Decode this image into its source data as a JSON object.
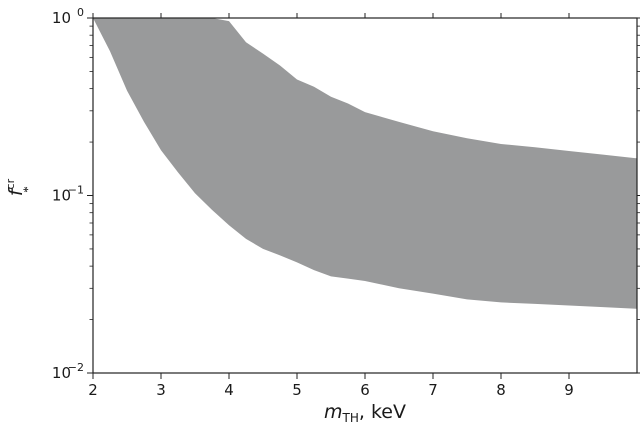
{
  "chart_data": {
    "type": "area",
    "title": "",
    "xlabel": {
      "base": "m",
      "subscript": "TH",
      "suffix": ", keV"
    },
    "ylabel": {
      "base": "f",
      "subscript": "*",
      "superscript": "cr"
    },
    "x_scale": "linear",
    "y_scale": "log",
    "xlim": [
      2,
      10
    ],
    "ylim": [
      0.01,
      1
    ],
    "x_ticks": [
      2,
      3,
      4,
      5,
      6,
      7,
      8,
      9
    ],
    "x_tick_labels": [
      "2",
      "3",
      "4",
      "5",
      "6",
      "7",
      "8",
      "9"
    ],
    "y_ticks": [
      {
        "value": 0.01,
        "base": "10",
        "exp": "−2"
      },
      {
        "value": 0.1,
        "base": "10",
        "exp": "−1"
      },
      {
        "value": 1,
        "base": "10",
        "exp": "0"
      }
    ],
    "grid": false,
    "legend": "none",
    "fill_color": "#999a9b",
    "series": [
      {
        "x": [
          2.0,
          2.25,
          2.5,
          2.75,
          3.0,
          3.25,
          3.5,
          3.75,
          4.0,
          4.25,
          4.5,
          4.75,
          5.0,
          5.25,
          5.5,
          5.75,
          6.0,
          6.5,
          7.0,
          7.5,
          8.0,
          8.5,
          9.0,
          9.5,
          10.0
        ],
        "upper": [
          1.0,
          1.0,
          1.0,
          1.0,
          1.0,
          1.0,
          1.0,
          1.0,
          0.96,
          0.73,
          0.63,
          0.54,
          0.45,
          0.41,
          0.36,
          0.33,
          0.295,
          0.26,
          0.23,
          0.21,
          0.195,
          0.187,
          0.178,
          0.17,
          0.162
        ],
        "lower": [
          1.0,
          0.65,
          0.39,
          0.26,
          0.18,
          0.135,
          0.103,
          0.083,
          0.068,
          0.057,
          0.05,
          0.046,
          0.042,
          0.038,
          0.035,
          0.034,
          0.033,
          0.03,
          0.028,
          0.026,
          0.025,
          0.0245,
          0.024,
          0.0235,
          0.023
        ]
      }
    ]
  }
}
